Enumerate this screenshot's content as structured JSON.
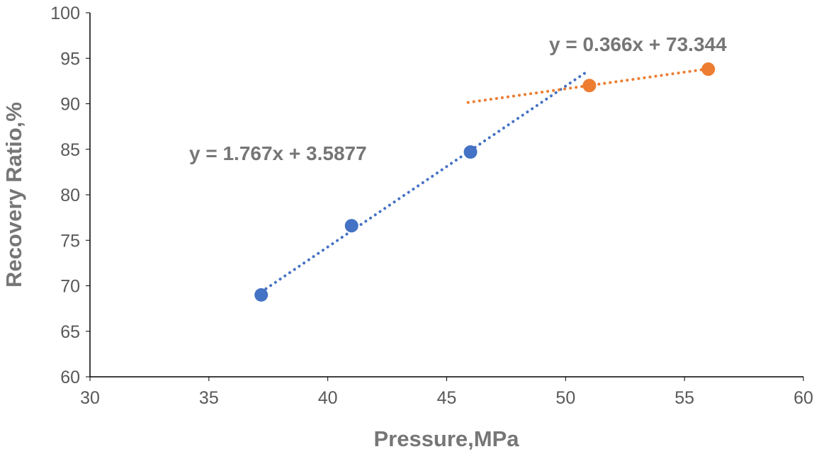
{
  "chart_data": {
    "type": "scatter",
    "title": "",
    "xlabel": "Pressure,MPa",
    "ylabel": "Recovery Ratio,%",
    "xlim": [
      30,
      60
    ],
    "ylim": [
      60,
      100
    ],
    "xticks": [
      30,
      35,
      40,
      45,
      50,
      55,
      60
    ],
    "yticks": [
      60,
      65,
      70,
      75,
      80,
      85,
      90,
      95,
      100
    ],
    "grid": false,
    "series": [
      {
        "color": "#4472C4",
        "x": [
          37.2,
          41,
          46
        ],
        "y": [
          69.0,
          76.6,
          84.7
        ],
        "trendline": {
          "slope": 1.767,
          "intercept": 3.5877,
          "x_range": [
            37.2,
            50.9
          ],
          "label": "y = 1.767x + 3.5877",
          "style": "dotted"
        }
      },
      {
        "color": "#ED7D31",
        "x": [
          51,
          56
        ],
        "y": [
          92.0,
          93.8
        ],
        "trendline": {
          "slope": 0.366,
          "intercept": 73.344,
          "x_range": [
            45.9,
            56
          ],
          "label": "y = 0.366x + 73.344",
          "style": "dotted"
        }
      }
    ]
  }
}
